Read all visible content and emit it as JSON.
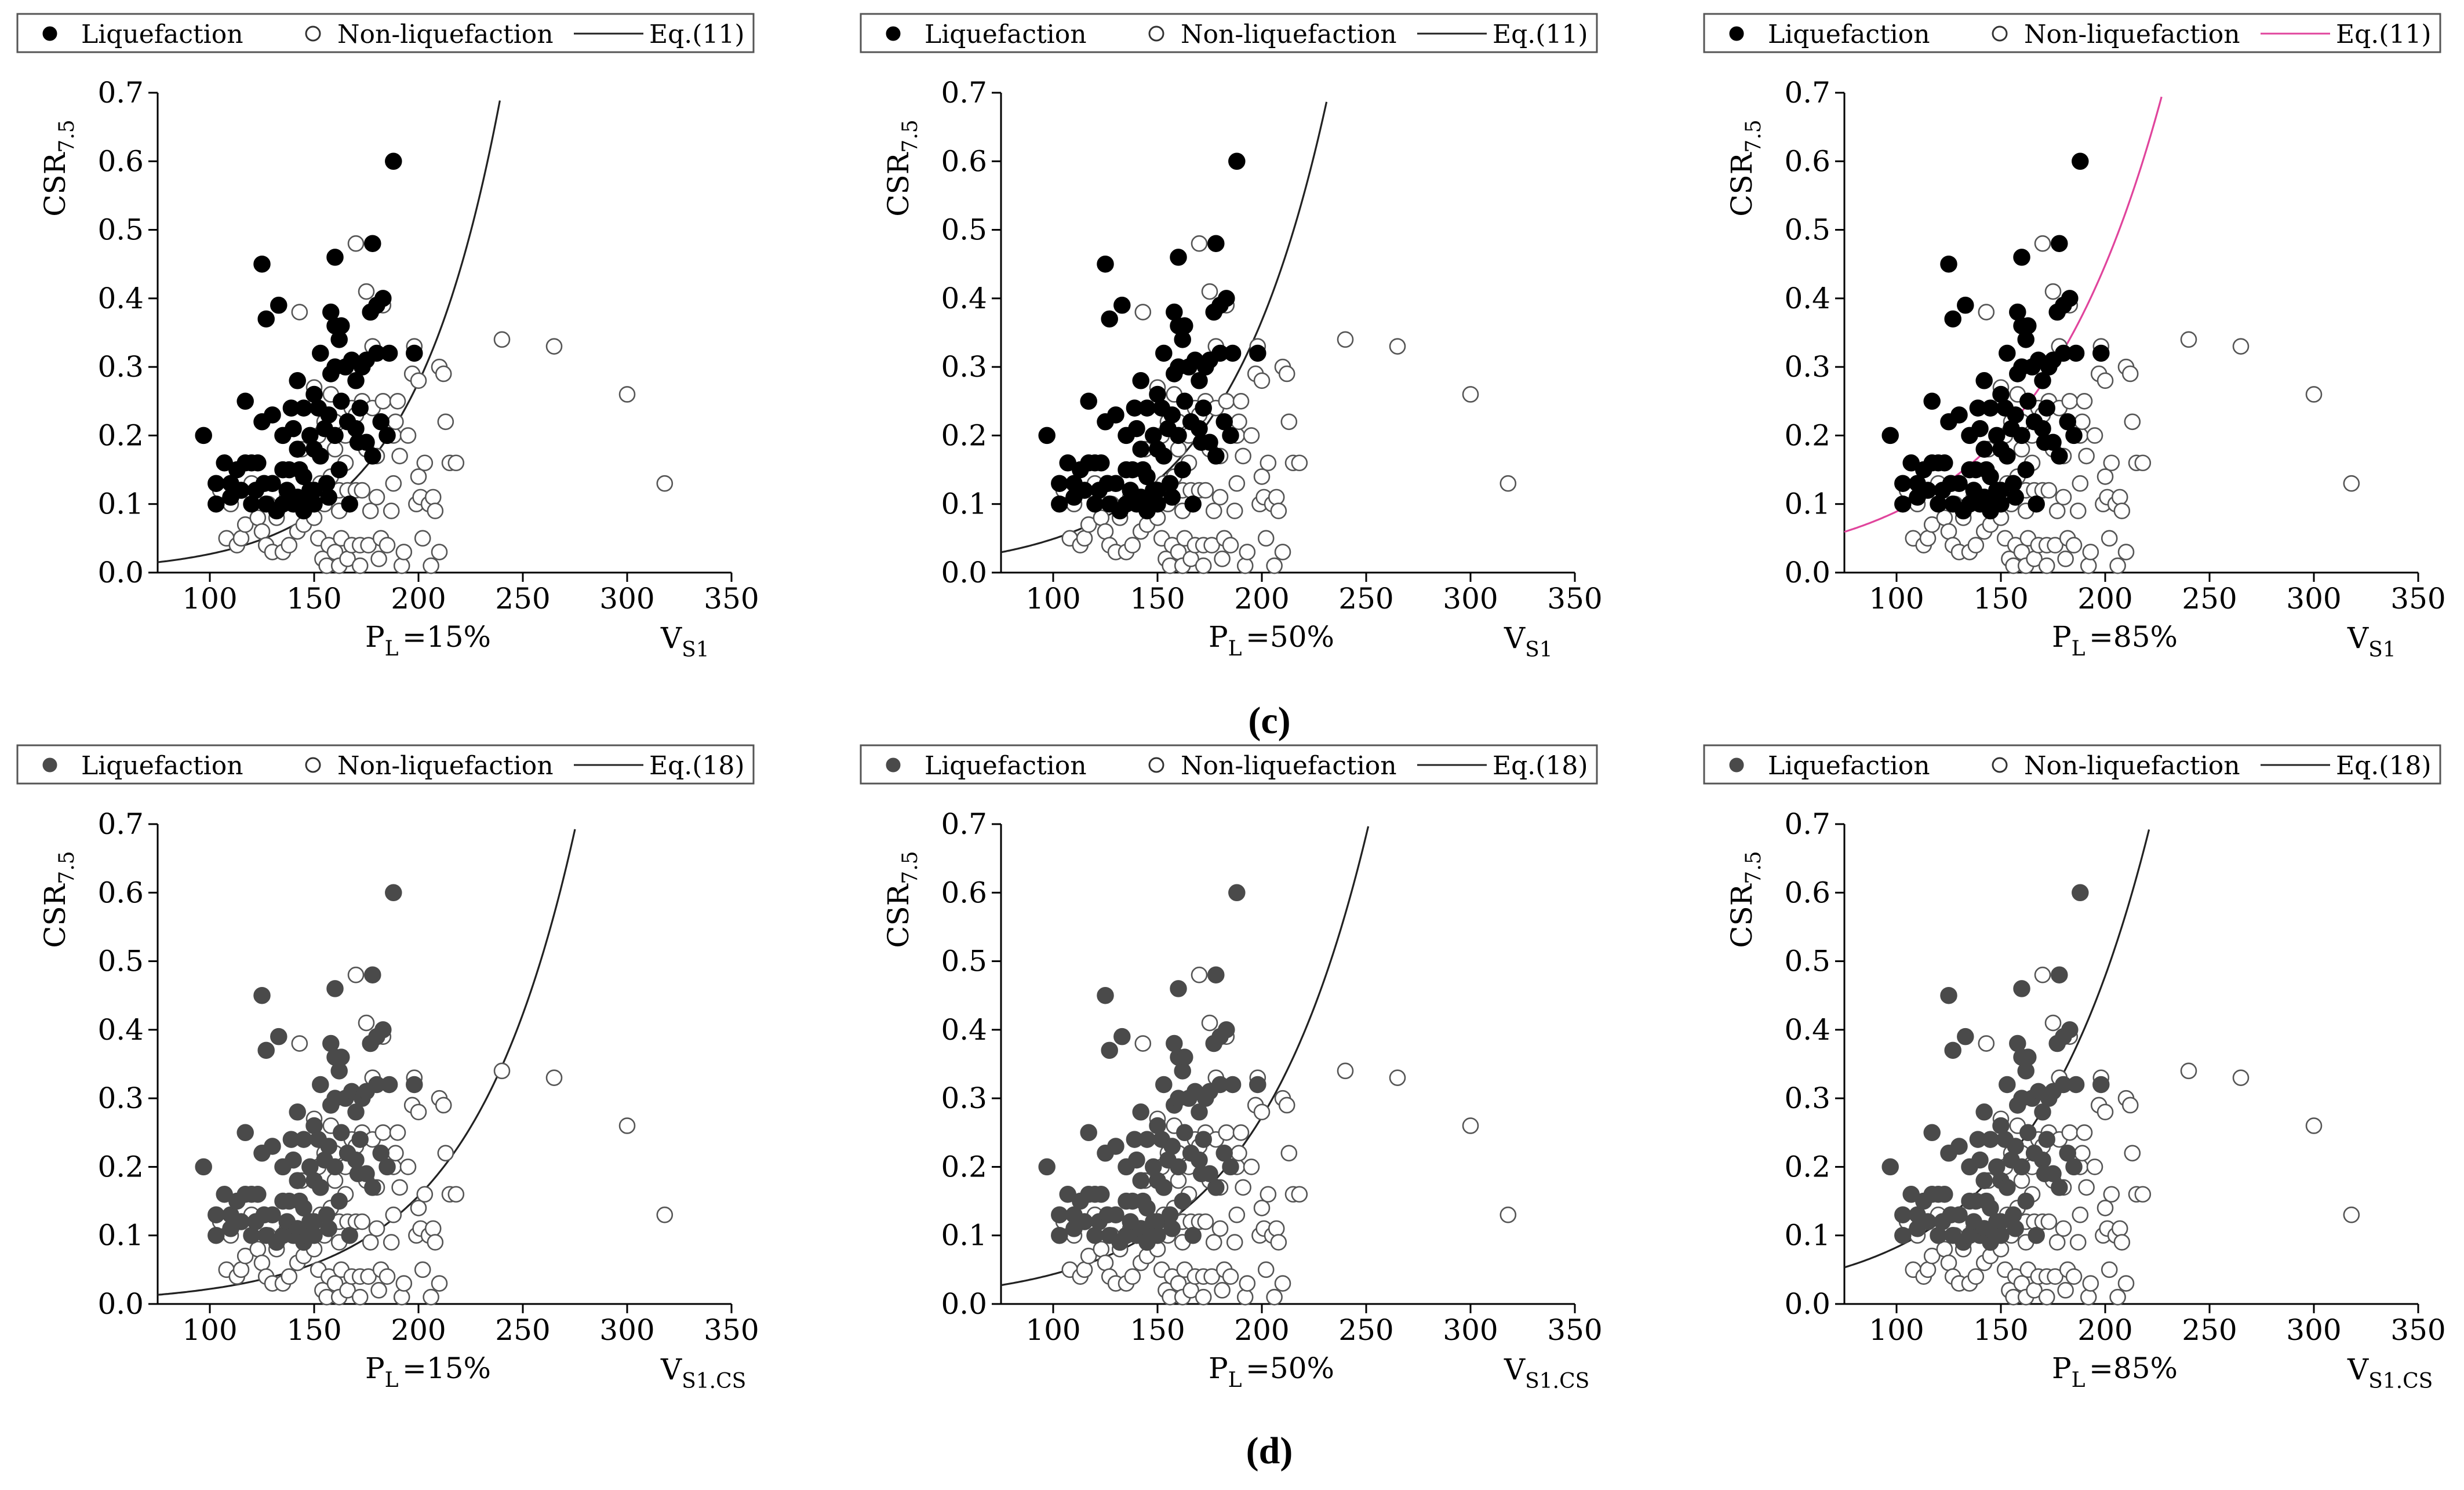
{
  "row_labels": [
    "(c)",
    "(d)"
  ],
  "colors": {
    "liq_c": "#000000",
    "liq_d": "#4a4a4a",
    "nonliq": "#ffffff",
    "curve": "#222222",
    "curve_pink": "#e0449c"
  },
  "chart_data": [
    {
      "type": "scatter",
      "row": 0,
      "col": 0,
      "xaxis_label_main": "V",
      "xaxis_label_sub": "S1",
      "pl_main": "P",
      "pl_sub": "L",
      "pl_value": "=15%",
      "ylabel_main": "CSR",
      "ylabel_sub": "7.5",
      "legend": {
        "liq": "Liquefaction",
        "nonliq": "Non-liquefaction",
        "eq": "Eq.(11)"
      },
      "curve": {
        "a": 0.00264,
        "b": 0.02328,
        "color": "curve"
      },
      "liq_style": "liq_c",
      "xlim": [
        75,
        350
      ],
      "ylim": [
        0,
        0.7
      ]
    },
    {
      "type": "scatter",
      "row": 0,
      "col": 1,
      "xaxis_label_main": "V",
      "xaxis_label_sub": "S1",
      "pl_main": "P",
      "pl_sub": "L",
      "pl_value": "=50%",
      "ylabel_main": "CSR",
      "ylabel_sub": "7.5",
      "legend": {
        "liq": "Liquefaction",
        "nonliq": "Non-liquefaction",
        "eq": "Eq.(11)"
      },
      "curve": {
        "a": 0.00655,
        "b": 0.02014,
        "color": "curve"
      },
      "liq_style": "liq_c",
      "xlim": [
        75,
        350
      ],
      "ylim": [
        0,
        0.7
      ]
    },
    {
      "type": "scatter",
      "row": 0,
      "col": 2,
      "xaxis_label_main": "V",
      "xaxis_label_sub": "S1",
      "pl_main": "P",
      "pl_sub": "L",
      "pl_value": "=85%",
      "ylabel_main": "CSR",
      "ylabel_sub": "7.5",
      "legend": {
        "liq": "Liquefaction",
        "nonliq": "Non-liquefaction",
        "eq": "Eq.(11)"
      },
      "curve": {
        "a": 0.01767,
        "b": 0.01617,
        "color": "curve_pink"
      },
      "liq_style": "liq_c",
      "xlim": [
        75,
        350
      ],
      "ylim": [
        0,
        0.7
      ]
    },
    {
      "type": "scatter",
      "row": 1,
      "col": 0,
      "xaxis_label_main": "V",
      "xaxis_label_sub": "S1.CS",
      "pl_main": "P",
      "pl_sub": "L",
      "pl_value": "=15%",
      "ylabel_main": "CSR",
      "ylabel_sub": "7.5",
      "legend": {
        "liq": "Liquefaction",
        "nonliq": "Non-liquefaction",
        "eq": "Eq.(18)"
      },
      "curve": {
        "a": 0.00304,
        "b": 0.01974,
        "color": "curve"
      },
      "liq_style": "liq_d",
      "xlim": [
        75,
        350
      ],
      "ylim": [
        0,
        0.7
      ]
    },
    {
      "type": "scatter",
      "row": 1,
      "col": 1,
      "xaxis_label_main": "V",
      "xaxis_label_sub": "S1.CS",
      "pl_main": "P",
      "pl_sub": "L",
      "pl_value": "=50%",
      "ylabel_main": "CSR",
      "ylabel_sub": "7.5",
      "legend": {
        "liq": "Liquefaction",
        "nonliq": "Non-liquefaction",
        "eq": "Eq.(18)"
      },
      "curve": {
        "a": 0.00691,
        "b": 0.01838,
        "color": "curve"
      },
      "liq_style": "liq_d",
      "xlim": [
        75,
        350
      ],
      "ylim": [
        0,
        0.7
      ]
    },
    {
      "type": "scatter",
      "row": 1,
      "col": 2,
      "xaxis_label_main": "V",
      "xaxis_label_sub": "S1.CS",
      "pl_main": "P",
      "pl_sub": "L",
      "pl_value": "=85%",
      "ylabel_main": "CSR",
      "ylabel_sub": "7.5",
      "legend": {
        "liq": "Liquefaction",
        "nonliq": "Non-liquefaction",
        "eq": "Eq.(18)"
      },
      "curve": {
        "a": 0.01428,
        "b": 0.01756,
        "color": "curve"
      },
      "liq_style": "liq_d",
      "xlim": [
        75,
        350
      ],
      "ylim": [
        0,
        0.7
      ]
    }
  ],
  "axis": {
    "xticks": [
      100,
      150,
      200,
      250,
      300,
      350
    ],
    "yticks": [
      0.0,
      0.1,
      0.2,
      0.3,
      0.4,
      0.5,
      0.6,
      0.7
    ]
  },
  "points": {
    "liq": [
      [
        97,
        0.2
      ],
      [
        103,
        0.1
      ],
      [
        103,
        0.13
      ],
      [
        107,
        0.16
      ],
      [
        110,
        0.11
      ],
      [
        110,
        0.13
      ],
      [
        113,
        0.15
      ],
      [
        115,
        0.12
      ],
      [
        117,
        0.16
      ],
      [
        117,
        0.25
      ],
      [
        120,
        0.1
      ],
      [
        120,
        0.16
      ],
      [
        122,
        0.12
      ],
      [
        123,
        0.16
      ],
      [
        125,
        0.45
      ],
      [
        125,
        0.22
      ],
      [
        126,
        0.13
      ],
      [
        127,
        0.1
      ],
      [
        127,
        0.37
      ],
      [
        130,
        0.13
      ],
      [
        130,
        0.23
      ],
      [
        132,
        0.09
      ],
      [
        133,
        0.39
      ],
      [
        135,
        0.1
      ],
      [
        135,
        0.15
      ],
      [
        135,
        0.2
      ],
      [
        137,
        0.12
      ],
      [
        138,
        0.15
      ],
      [
        139,
        0.24
      ],
      [
        140,
        0.1
      ],
      [
        140,
        0.21
      ],
      [
        142,
        0.28
      ],
      [
        142,
        0.18
      ],
      [
        142,
        0.11
      ],
      [
        143,
        0.15
      ],
      [
        145,
        0.24
      ],
      [
        145,
        0.14
      ],
      [
        145,
        0.09
      ],
      [
        147,
        0.1
      ],
      [
        148,
        0.12
      ],
      [
        148,
        0.2
      ],
      [
        150,
        0.18
      ],
      [
        150,
        0.12
      ],
      [
        150,
        0.1
      ],
      [
        150,
        0.26
      ],
      [
        152,
        0.24
      ],
      [
        153,
        0.32
      ],
      [
        153,
        0.17
      ],
      [
        155,
        0.21
      ],
      [
        156,
        0.13
      ],
      [
        157,
        0.11
      ],
      [
        157,
        0.23
      ],
      [
        158,
        0.29
      ],
      [
        158,
        0.38
      ],
      [
        160,
        0.46
      ],
      [
        160,
        0.3
      ],
      [
        160,
        0.2
      ],
      [
        160,
        0.36
      ],
      [
        162,
        0.34
      ],
      [
        162,
        0.15
      ],
      [
        163,
        0.25
      ],
      [
        163,
        0.36
      ],
      [
        165,
        0.3
      ],
      [
        166,
        0.22
      ],
      [
        167,
        0.1
      ],
      [
        168,
        0.31
      ],
      [
        170,
        0.21
      ],
      [
        170,
        0.28
      ],
      [
        171,
        0.19
      ],
      [
        172,
        0.24
      ],
      [
        173,
        0.3
      ],
      [
        175,
        0.19
      ],
      [
        175,
        0.31
      ],
      [
        177,
        0.38
      ],
      [
        178,
        0.48
      ],
      [
        178,
        0.17
      ],
      [
        180,
        0.39
      ],
      [
        180,
        0.32
      ],
      [
        182,
        0.22
      ],
      [
        183,
        0.4
      ],
      [
        185,
        0.2
      ],
      [
        186,
        0.32
      ],
      [
        188,
        0.6
      ],
      [
        198,
        0.32
      ]
    ],
    "nonliq": [
      [
        105,
        0.12
      ],
      [
        108,
        0.05
      ],
      [
        110,
        0.1
      ],
      [
        113,
        0.04
      ],
      [
        115,
        0.05
      ],
      [
        117,
        0.07
      ],
      [
        120,
        0.13
      ],
      [
        123,
        0.08
      ],
      [
        125,
        0.06
      ],
      [
        127,
        0.04
      ],
      [
        128,
        0.1
      ],
      [
        130,
        0.03
      ],
      [
        132,
        0.08
      ],
      [
        135,
        0.03
      ],
      [
        137,
        0.11
      ],
      [
        138,
        0.04
      ],
      [
        140,
        0.1
      ],
      [
        142,
        0.06
      ],
      [
        143,
        0.38
      ],
      [
        144,
        0.18
      ],
      [
        145,
        0.07
      ],
      [
        147,
        0.09
      ],
      [
        148,
        0.12
      ],
      [
        150,
        0.08
      ],
      [
        150,
        0.27
      ],
      [
        152,
        0.05
      ],
      [
        152,
        0.2
      ],
      [
        153,
        0.13
      ],
      [
        154,
        0.02
      ],
      [
        155,
        0.22
      ],
      [
        155,
        0.1
      ],
      [
        156,
        0.01
      ],
      [
        157,
        0.04
      ],
      [
        158,
        0.26
      ],
      [
        158,
        0.14
      ],
      [
        160,
        0.03
      ],
      [
        160,
        0.18
      ],
      [
        160,
        0.22
      ],
      [
        162,
        0.09
      ],
      [
        162,
        0.01
      ],
      [
        162,
        0.12
      ],
      [
        163,
        0.05
      ],
      [
        165,
        0.2
      ],
      [
        165,
        0.16
      ],
      [
        166,
        0.12
      ],
      [
        166,
        0.02
      ],
      [
        168,
        0.04
      ],
      [
        168,
        0.24
      ],
      [
        170,
        0.23
      ],
      [
        170,
        0.12
      ],
      [
        170,
        0.48
      ],
      [
        172,
        0.01
      ],
      [
        172,
        0.04
      ],
      [
        173,
        0.25
      ],
      [
        173,
        0.12
      ],
      [
        175,
        0.41
      ],
      [
        175,
        0.18
      ],
      [
        176,
        0.04
      ],
      [
        177,
        0.09
      ],
      [
        178,
        0.24
      ],
      [
        178,
        0.33
      ],
      [
        180,
        0.11
      ],
      [
        180,
        0.17
      ],
      [
        181,
        0.02
      ],
      [
        182,
        0.05
      ],
      [
        183,
        0.39
      ],
      [
        183,
        0.25
      ],
      [
        185,
        0.04
      ],
      [
        187,
        0.09
      ],
      [
        188,
        0.13
      ],
      [
        188,
        0.2
      ],
      [
        189,
        0.22
      ],
      [
        190,
        0.25
      ],
      [
        191,
        0.17
      ],
      [
        192,
        0.01
      ],
      [
        193,
        0.03
      ],
      [
        195,
        0.2
      ],
      [
        197,
        0.29
      ],
      [
        198,
        0.33
      ],
      [
        199,
        0.1
      ],
      [
        200,
        0.14
      ],
      [
        200,
        0.28
      ],
      [
        201,
        0.11
      ],
      [
        202,
        0.05
      ],
      [
        203,
        0.16
      ],
      [
        205,
        0.1
      ],
      [
        206,
        0.01
      ],
      [
        207,
        0.11
      ],
      [
        208,
        0.09
      ],
      [
        210,
        0.03
      ],
      [
        210,
        0.3
      ],
      [
        212,
        0.29
      ],
      [
        213,
        0.22
      ],
      [
        215,
        0.16
      ],
      [
        218,
        0.16
      ],
      [
        240,
        0.34
      ],
      [
        265,
        0.33
      ],
      [
        300,
        0.26
      ],
      [
        318,
        0.13
      ]
    ]
  }
}
